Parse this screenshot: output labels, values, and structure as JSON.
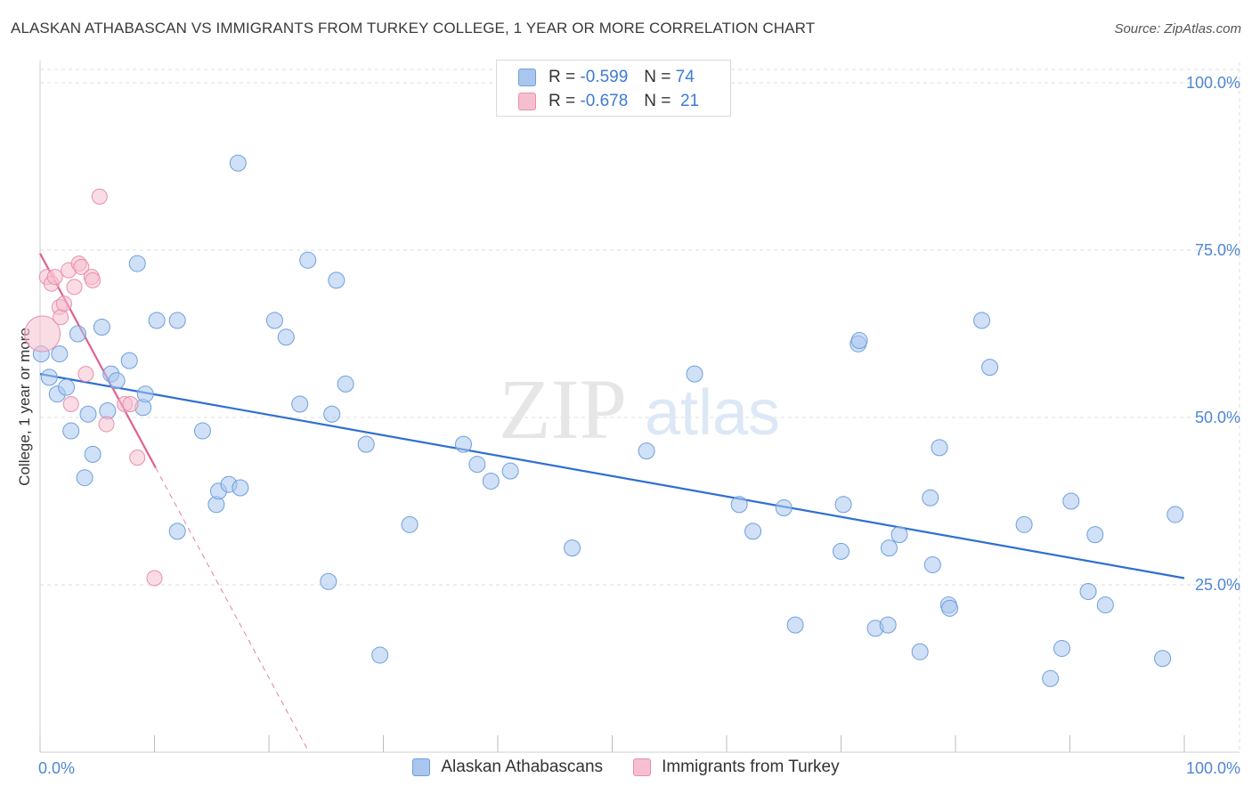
{
  "title": "ALASKAN ATHABASCAN VS IMMIGRANTS FROM TURKEY COLLEGE, 1 YEAR OR MORE CORRELATION CHART",
  "source": "Source: ZipAtlas.com",
  "watermark": {
    "zip": "ZIP",
    "atlas": "atlas"
  },
  "colors": {
    "blue_fill": "#a9c6ee",
    "blue_stroke": "#6f9fdc",
    "blue_line": "#2f6fd0",
    "pink_fill": "#f6bfd0",
    "pink_stroke": "#e98fac",
    "pink_line": "#e0608e",
    "tick_text": "#4f86d4",
    "grid": "#dcdcdc"
  },
  "legend_top": {
    "rows": [
      {
        "r_label": "R =",
        "r_value": "-0.599",
        "n_label": "N =",
        "n_value": "74"
      },
      {
        "r_label": "R =",
        "r_value": "-0.678",
        "n_label": "N =",
        "n_value": "21"
      }
    ]
  },
  "chart_data": {
    "type": "scatter",
    "title": "ALASKAN ATHABASCAN VS IMMIGRANTS FROM TURKEY COLLEGE, 1 YEAR OR MORE CORRELATION CHART",
    "xlabel": "",
    "ylabel": "College, 1 year or more",
    "xlim": [
      0,
      100
    ],
    "ylim": [
      0,
      102
    ],
    "x_tick_labels": [
      "0.0%",
      "100.0%"
    ],
    "y_ticks": [
      25,
      50,
      75,
      100
    ],
    "y_tick_labels": [
      "25.0%",
      "50.0%",
      "75.0%",
      "100.0%"
    ],
    "grid": true,
    "legend_position": "bottom",
    "series": [
      {
        "name": "Alaskan Athabascans",
        "color": "#a9c6ee",
        "r": -0.599,
        "n": 74,
        "trend": {
          "x": [
            0,
            100
          ],
          "y": [
            56.5,
            26.0
          ],
          "style": "solid"
        },
        "points": [
          [
            0.1,
            59.5
          ],
          [
            0.8,
            56.0
          ],
          [
            1.5,
            53.5
          ],
          [
            1.7,
            59.5
          ],
          [
            2.3,
            54.5
          ],
          [
            2.7,
            48.0
          ],
          [
            3.3,
            62.5
          ],
          [
            3.9,
            41.0
          ],
          [
            4.2,
            50.5
          ],
          [
            4.6,
            44.5
          ],
          [
            5.4,
            63.5
          ],
          [
            5.9,
            51.0
          ],
          [
            6.2,
            56.5
          ],
          [
            6.7,
            55.5
          ],
          [
            7.8,
            58.5
          ],
          [
            8.5,
            73.0
          ],
          [
            9.0,
            51.5
          ],
          [
            9.2,
            53.5
          ],
          [
            10.2,
            64.5
          ],
          [
            12.0,
            64.5
          ],
          [
            12.0,
            33.0
          ],
          [
            14.2,
            48.0
          ],
          [
            15.4,
            37.0
          ],
          [
            15.6,
            39.0
          ],
          [
            16.5,
            40.0
          ],
          [
            17.5,
            39.5
          ],
          [
            17.3,
            88.0
          ],
          [
            20.5,
            64.5
          ],
          [
            21.5,
            62.0
          ],
          [
            22.7,
            52.0
          ],
          [
            23.4,
            73.5
          ],
          [
            25.2,
            25.5
          ],
          [
            25.5,
            50.5
          ],
          [
            25.9,
            70.5
          ],
          [
            26.7,
            55.0
          ],
          [
            28.5,
            46.0
          ],
          [
            29.7,
            14.5
          ],
          [
            32.3,
            34.0
          ],
          [
            37.0,
            46.0
          ],
          [
            38.2,
            43.0
          ],
          [
            39.4,
            40.5
          ],
          [
            41.1,
            42.0
          ],
          [
            46.5,
            30.5
          ],
          [
            53.0,
            45.0
          ],
          [
            57.2,
            56.5
          ],
          [
            61.1,
            37.0
          ],
          [
            62.3,
            33.0
          ],
          [
            65.0,
            36.5
          ],
          [
            66.0,
            19.0
          ],
          [
            70.0,
            30.0
          ],
          [
            70.2,
            37.0
          ],
          [
            71.5,
            61.0
          ],
          [
            71.6,
            61.5
          ],
          [
            73.0,
            18.5
          ],
          [
            74.1,
            19.0
          ],
          [
            74.2,
            30.5
          ],
          [
            75.1,
            32.5
          ],
          [
            76.9,
            15.0
          ],
          [
            77.8,
            38.0
          ],
          [
            78.0,
            28.0
          ],
          [
            78.6,
            45.5
          ],
          [
            79.4,
            22.0
          ],
          [
            79.5,
            21.5
          ],
          [
            82.3,
            64.5
          ],
          [
            83.0,
            57.5
          ],
          [
            86.0,
            34.0
          ],
          [
            88.3,
            11.0
          ],
          [
            89.3,
            15.5
          ],
          [
            90.1,
            37.5
          ],
          [
            91.6,
            24.0
          ],
          [
            92.2,
            32.5
          ],
          [
            93.1,
            22.0
          ],
          [
            98.1,
            14.0
          ],
          [
            99.2,
            35.5
          ]
        ]
      },
      {
        "name": "Immigrants from Turkey",
        "color": "#f6bfd0",
        "r": -0.678,
        "n": 21,
        "trend": {
          "x": [
            0,
            10.1
          ],
          "y": [
            74.5,
            42.5
          ],
          "style": "solid",
          "extension_x": [
            10.1,
            23.5
          ],
          "extension_y": [
            42.5,
            0
          ],
          "extension_style": "dashed"
        },
        "points": [
          [
            0.2,
            62.5
          ],
          [
            0.6,
            71.0
          ],
          [
            1.0,
            70.0
          ],
          [
            1.3,
            71.0
          ],
          [
            1.7,
            66.5
          ],
          [
            1.8,
            65.0
          ],
          [
            2.1,
            67.0
          ],
          [
            2.5,
            72.0
          ],
          [
            2.7,
            52.0
          ],
          [
            3.0,
            69.5
          ],
          [
            3.4,
            73.0
          ],
          [
            3.6,
            72.5
          ],
          [
            4.0,
            56.5
          ],
          [
            4.5,
            71.0
          ],
          [
            4.6,
            70.5
          ],
          [
            5.2,
            83.0
          ],
          [
            5.8,
            49.0
          ],
          [
            7.4,
            52.0
          ],
          [
            7.9,
            52.0
          ],
          [
            8.5,
            44.0
          ],
          [
            10.0,
            26.0
          ]
        ]
      }
    ]
  },
  "legend_bottom": {
    "items": [
      {
        "label": "Alaskan Athabascans"
      },
      {
        "label": "Immigrants from Turkey"
      }
    ]
  }
}
